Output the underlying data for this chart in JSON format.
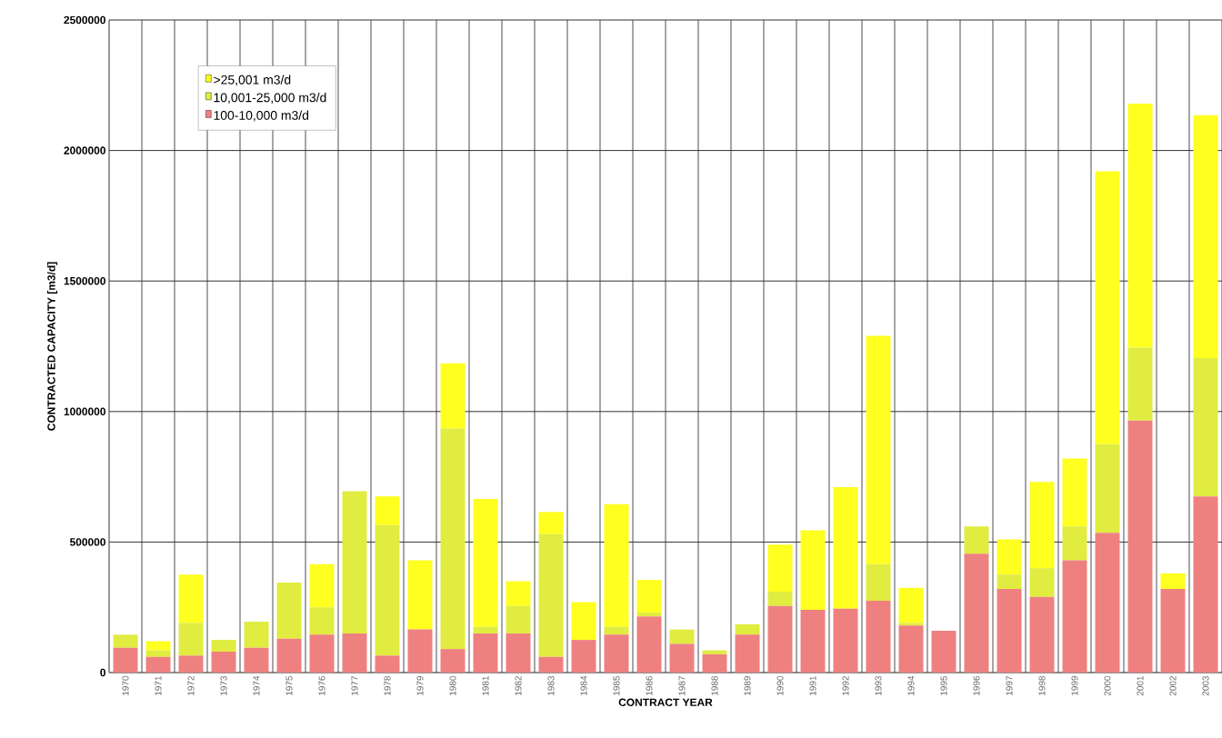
{
  "chart_data": {
    "type": "bar",
    "stacked": true,
    "xlabel": "CONTRACT YEAR",
    "ylabel": "CONTRACTED CAPACITY [m3/d]",
    "categories": [
      "1970",
      "1971",
      "1972",
      "1973",
      "1974",
      "1975",
      "1976",
      "1977",
      "1978",
      "1979",
      "1980",
      "1981",
      "1982",
      "1983",
      "1984",
      "1985",
      "1986",
      "1987",
      "1988",
      "1989",
      "1990",
      "1991",
      "1992",
      "1993",
      "1994",
      "1995",
      "1996",
      "1997",
      "1998",
      "1999",
      "2000",
      "2001",
      "2002",
      "2003"
    ],
    "series": [
      {
        "name": "100-10,000 m3/d",
        "color": "#ef8080",
        "values": [
          95000,
          60000,
          65000,
          80000,
          95000,
          130000,
          145000,
          150000,
          65000,
          165000,
          90000,
          150000,
          150000,
          60000,
          125000,
          145000,
          215000,
          110000,
          70000,
          145000,
          255000,
          240000,
          245000,
          275000,
          180000,
          160000,
          455000,
          320000,
          290000,
          430000,
          535000,
          965000,
          320000,
          675000
        ]
      },
      {
        "name": "10,001-25,000 m3/d",
        "color": "#e0ec40",
        "values": [
          50000,
          25000,
          125000,
          45000,
          100000,
          215000,
          105000,
          545000,
          500000,
          0,
          845000,
          25000,
          105000,
          470000,
          0,
          30000,
          15000,
          55000,
          15000,
          40000,
          55000,
          0,
          0,
          140000,
          10000,
          0,
          105000,
          55000,
          110000,
          130000,
          340000,
          280000,
          0,
          530000
        ]
      },
      {
        "name": ">25,001 m3/d",
        "color": "#ffff20",
        "values": [
          0,
          35000,
          185000,
          0,
          0,
          0,
          165000,
          0,
          110000,
          265000,
          250000,
          490000,
          95000,
          85000,
          145000,
          470000,
          125000,
          0,
          0,
          0,
          180000,
          305000,
          465000,
          875000,
          135000,
          0,
          0,
          135000,
          330000,
          260000,
          1045000,
          935000,
          60000,
          930000
        ]
      }
    ],
    "ylim": [
      0,
      2500000
    ],
    "yticks": [
      0,
      500000,
      1000000,
      1500000,
      2000000,
      2500000
    ],
    "grid": true,
    "legend": "top left"
  }
}
